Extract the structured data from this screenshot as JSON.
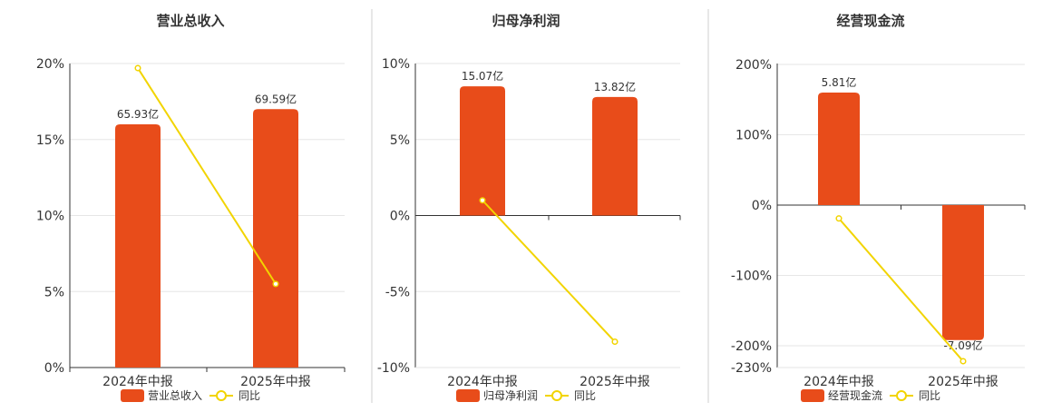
{
  "colors": {
    "bar": "#e84c1a",
    "line": "#f2d400",
    "grid": "#e6e6e6",
    "axis": "#333333",
    "divider": "#cfcfcf",
    "text": "#333333"
  },
  "chart_data": [
    {
      "type": "bar",
      "title": "营业总收入",
      "categories": [
        "2024年中报",
        "2025年中报"
      ],
      "series": [
        {
          "name": "营业总收入",
          "kind": "bar",
          "values": [
            16.0,
            17.0
          ],
          "labels": [
            "65.93亿",
            "69.59亿"
          ]
        },
        {
          "name": "同比",
          "kind": "line",
          "values": [
            19.7,
            5.5
          ]
        }
      ],
      "yticks": [
        "20%",
        "15%",
        "10%",
        "5%",
        "0%"
      ],
      "ylim": [
        0,
        20
      ],
      "tick_values": [
        20,
        15,
        10,
        5,
        0
      ],
      "grid": true,
      "legend": "bottom"
    },
    {
      "type": "bar",
      "title": "归母净利润",
      "categories": [
        "2024年中报",
        "2025年中报"
      ],
      "series": [
        {
          "name": "归母净利润",
          "kind": "bar",
          "values": [
            8.5,
            7.8
          ],
          "labels": [
            "15.07亿",
            "13.82亿"
          ]
        },
        {
          "name": "同比",
          "kind": "line",
          "values": [
            1.0,
            -8.3
          ]
        }
      ],
      "yticks": [
        "10%",
        "5%",
        "0%",
        "-5%",
        "-10%"
      ],
      "ylim": [
        -10,
        10
      ],
      "tick_values": [
        10,
        5,
        0,
        -5,
        -10
      ],
      "grid": true,
      "legend": "bottom"
    },
    {
      "type": "bar",
      "title": "经营现金流",
      "categories": [
        "2024年中报",
        "2025年中报"
      ],
      "series": [
        {
          "name": "经营现金流",
          "kind": "bar",
          "values": [
            160,
            -192
          ],
          "labels": [
            "5.81亿",
            "-7.09亿"
          ]
        },
        {
          "name": "同比",
          "kind": "line",
          "values": [
            -19,
            -222
          ]
        }
      ],
      "yticks": [
        "200%",
        "100%",
        "0%",
        "-100%",
        "-200%",
        "-230%"
      ],
      "ylim": [
        -230,
        200
      ],
      "tick_values": [
        200,
        100,
        0,
        -100,
        -200,
        -230
      ],
      "grid": true,
      "legend": "bottom"
    }
  ]
}
